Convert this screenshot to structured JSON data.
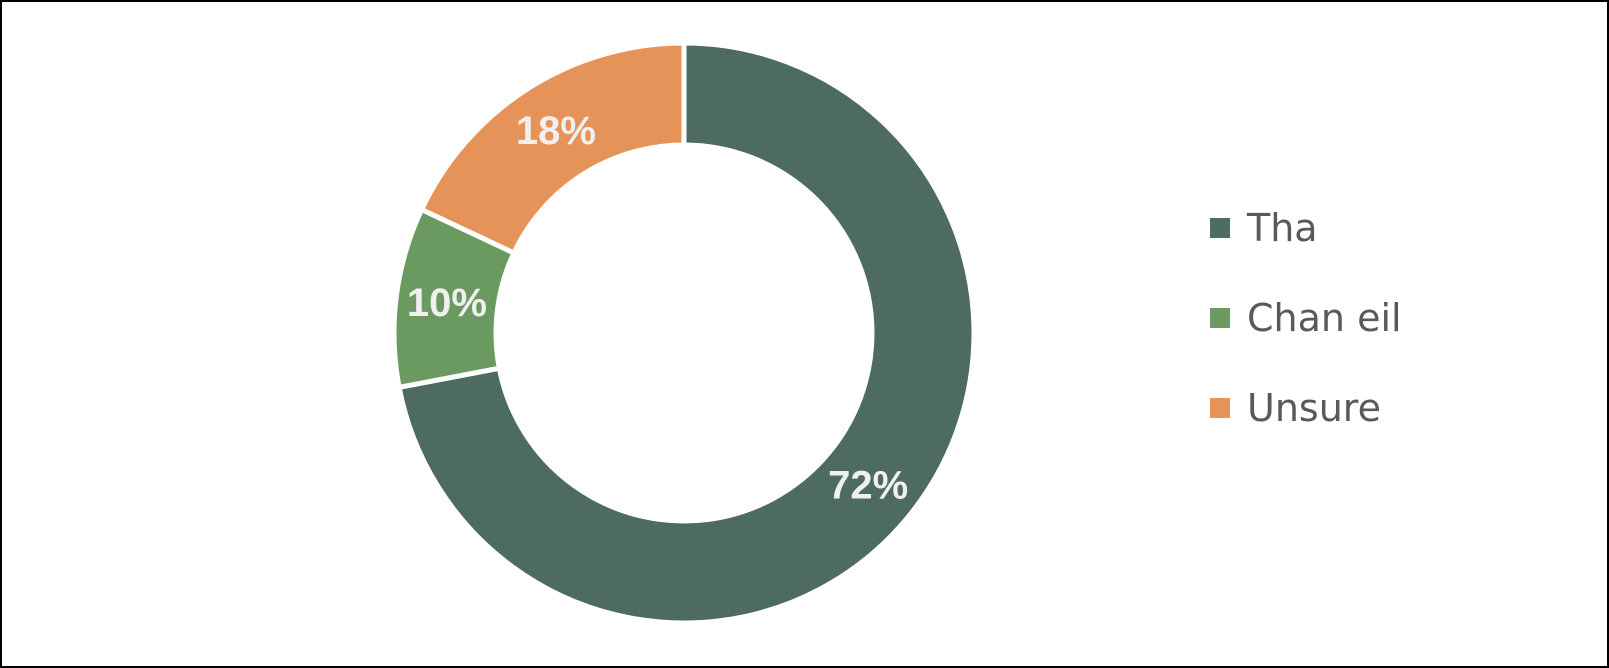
{
  "chart_data": {
    "type": "pie",
    "variant": "donut",
    "categories": [
      "Tha",
      "Chan eil",
      "Unsure"
    ],
    "values": [
      72,
      10,
      18
    ],
    "labels": [
      "72%",
      "10%",
      "18%"
    ],
    "colors": [
      "#4e6b61",
      "#6a9a5f",
      "#e59358"
    ],
    "legend": "right",
    "start": "top",
    "direction": "clockwise"
  }
}
